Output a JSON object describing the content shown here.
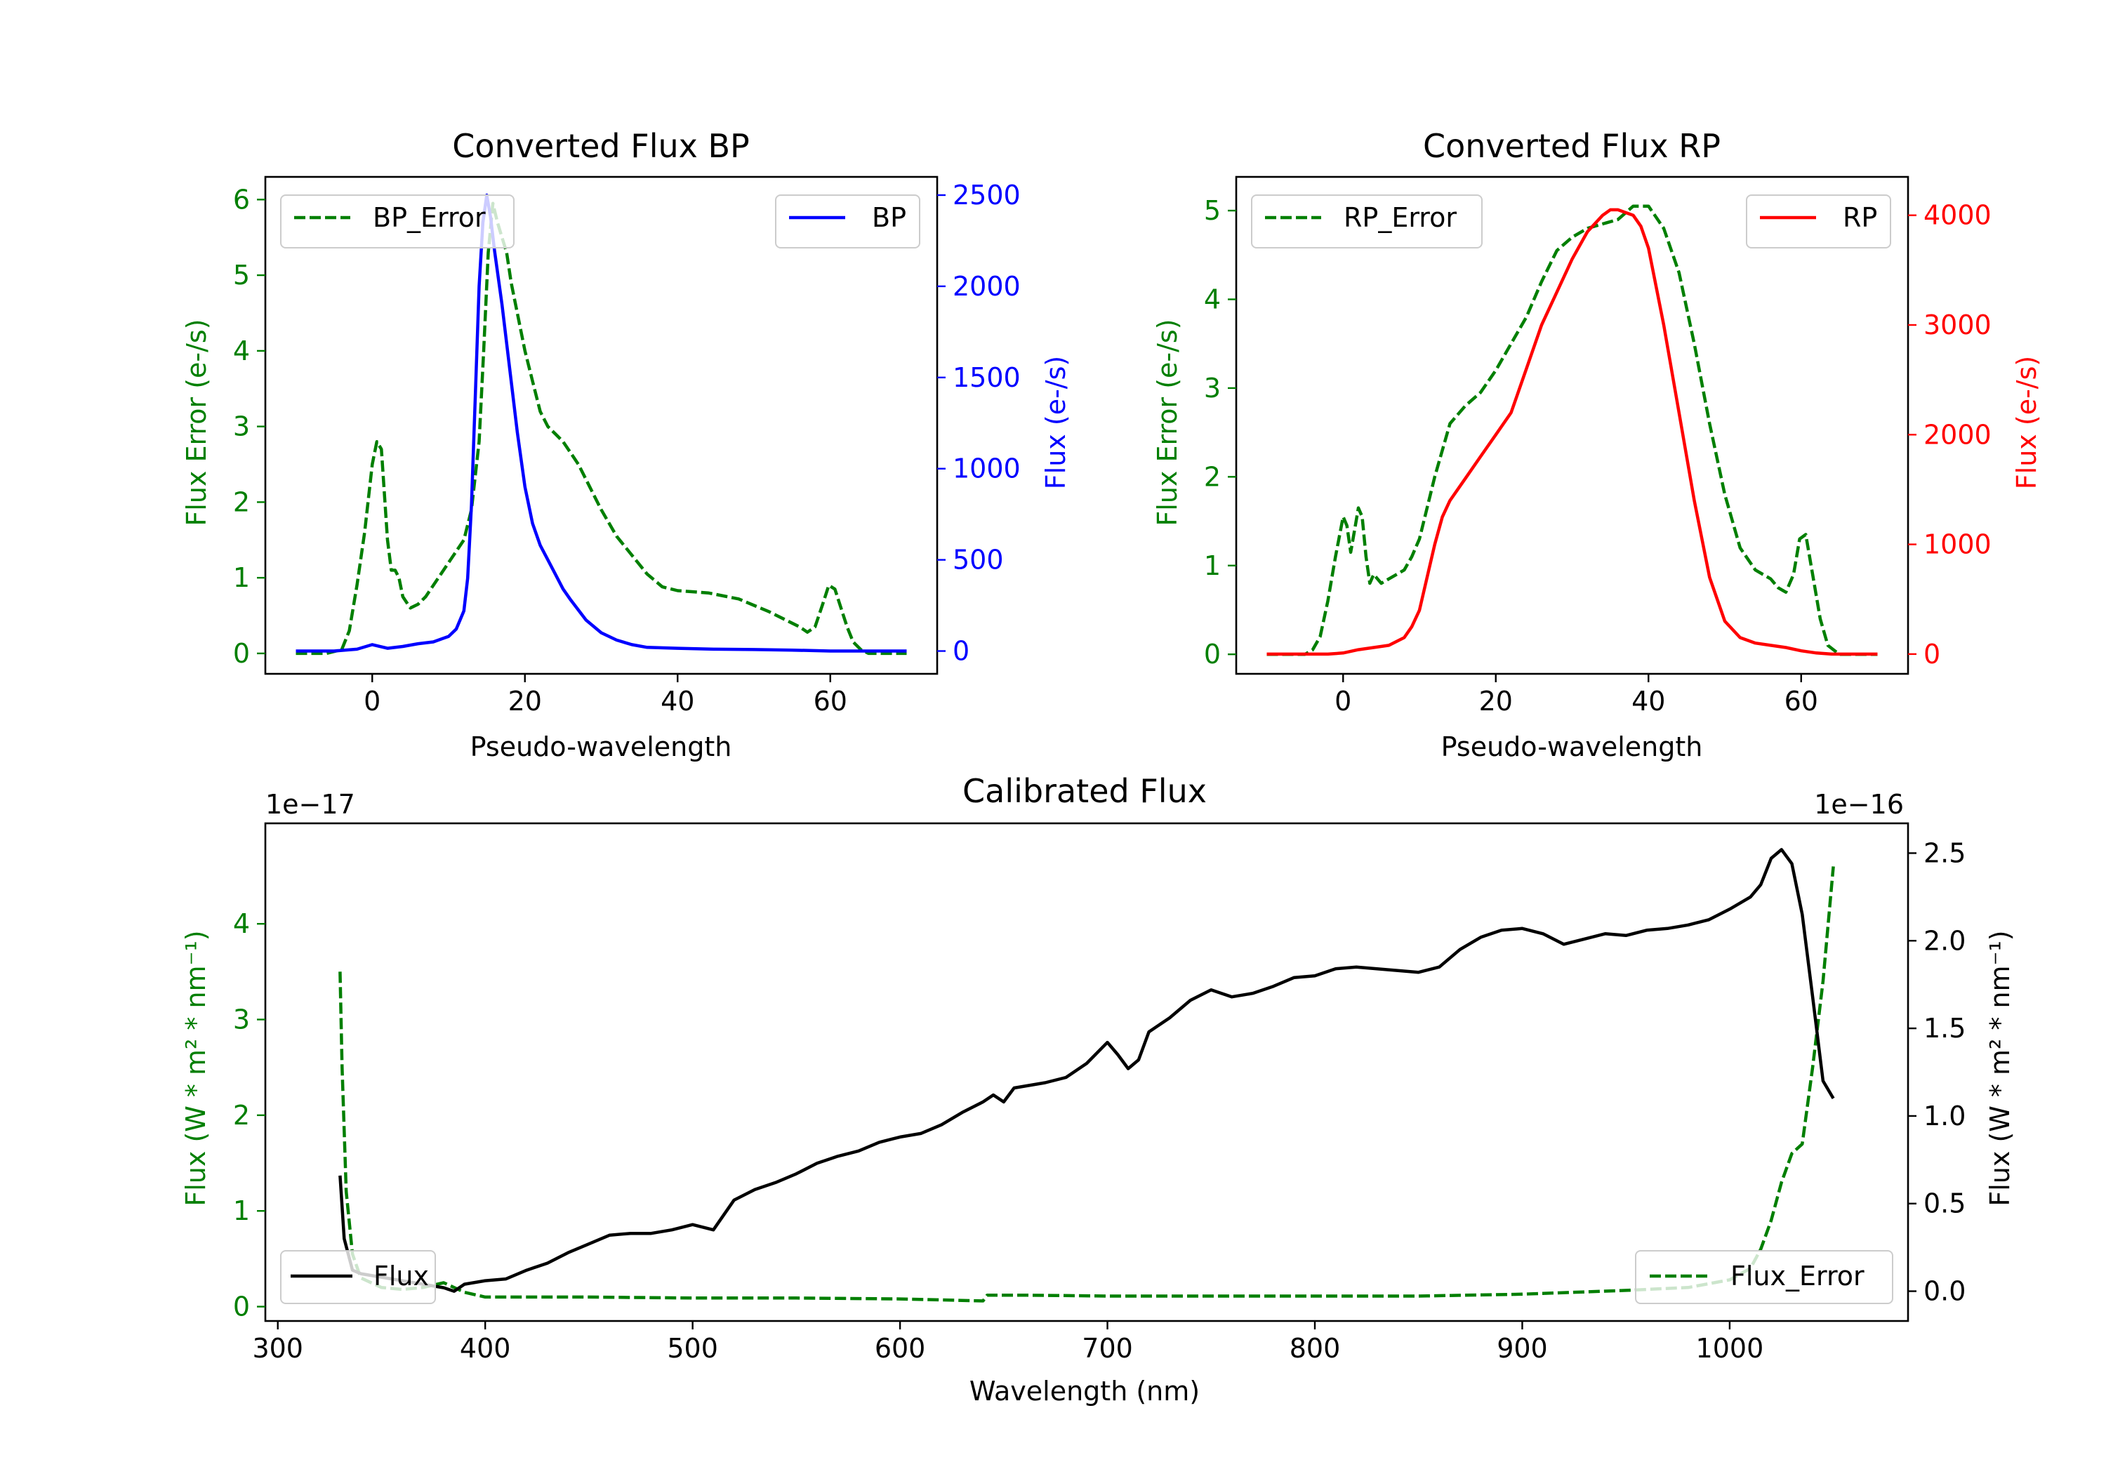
{
  "colors": {
    "error": "#007f00",
    "bp": "#0000ff",
    "rp": "#ff0000",
    "flux": "#000000",
    "axis": "#000000",
    "legend_border": "#cccccc"
  },
  "chart_data": [
    {
      "id": "bp",
      "type": "line",
      "title": "Converted Flux BP",
      "xlabel": "Pseudo-wavelength",
      "ylabel_left": "Flux Error (e-/s)",
      "ylabel_right": "Flux (e-/s)",
      "xlim": [
        -14,
        74
      ],
      "ylim_left": [
        -0.27,
        6.3
      ],
      "ylim_right": [
        -125,
        2600
      ],
      "xticks": [
        0,
        20,
        40,
        60
      ],
      "yticks_left": [
        0,
        1,
        2,
        3,
        4,
        5,
        6
      ],
      "yticks_right": [
        0,
        500,
        1000,
        1500,
        2000,
        2500
      ],
      "series": [
        {
          "name": "BP_Error",
          "axis": "left",
          "style": "dashed",
          "color": "#007f00",
          "legend": "top-left",
          "x": [
            -10,
            -6,
            -4,
            -3,
            -2,
            -1,
            0,
            0.6,
            1.2,
            2,
            2.5,
            3,
            3.5,
            4,
            5,
            6,
            7,
            8,
            10,
            12,
            13,
            14,
            14.6,
            15.2,
            15.8,
            16.4,
            17,
            17.6,
            18.2,
            19,
            20,
            21,
            22,
            23,
            24,
            25,
            26,
            27,
            28,
            29,
            30,
            32,
            34,
            36,
            38,
            40,
            44,
            48,
            52,
            55,
            56,
            57,
            58,
            59,
            59.8,
            60.6,
            61.4,
            62.2,
            63,
            64,
            65,
            70
          ],
          "y": [
            0,
            0,
            0.05,
            0.3,
            0.9,
            1.6,
            2.5,
            2.8,
            2.7,
            1.5,
            1.1,
            1.1,
            1.0,
            0.75,
            0.6,
            0.65,
            0.75,
            0.9,
            1.2,
            1.5,
            1.9,
            2.8,
            4.0,
            5.3,
            5.95,
            5.7,
            5.5,
            5.3,
            4.9,
            4.5,
            4.0,
            3.6,
            3.2,
            3.0,
            2.9,
            2.8,
            2.65,
            2.5,
            2.3,
            2.1,
            1.9,
            1.55,
            1.3,
            1.05,
            0.88,
            0.83,
            0.8,
            0.72,
            0.55,
            0.4,
            0.35,
            0.28,
            0.35,
            0.65,
            0.9,
            0.85,
            0.6,
            0.35,
            0.15,
            0.05,
            0,
            0
          ]
        },
        {
          "name": "BP",
          "axis": "right",
          "style": "solid",
          "color": "#0000ff",
          "legend": "top-right",
          "x": [
            -10,
            -5,
            -2,
            0,
            2,
            4,
            6,
            8,
            10,
            11,
            12,
            12.5,
            13,
            13.5,
            14,
            14.5,
            15,
            15.5,
            16,
            16.5,
            17,
            18,
            19,
            20,
            21,
            22,
            23,
            24,
            25,
            26,
            28,
            30,
            32,
            34,
            36,
            40,
            45,
            50,
            55,
            60,
            65,
            70
          ],
          "y": [
            0,
            0,
            10,
            35,
            15,
            25,
            40,
            50,
            80,
            120,
            220,
            400,
            800,
            1400,
            2000,
            2350,
            2500,
            2380,
            2200,
            2050,
            1900,
            1550,
            1200,
            900,
            700,
            580,
            500,
            420,
            340,
            280,
            170,
            100,
            60,
            35,
            20,
            15,
            10,
            8,
            5,
            0,
            0,
            0
          ]
        }
      ]
    },
    {
      "id": "rp",
      "type": "line",
      "title": "Converted Flux RP",
      "xlabel": "Pseudo-wavelength",
      "ylabel_left": "Flux Error (e-/s)",
      "ylabel_right": "Flux (e-/s)",
      "xlim": [
        -14,
        74
      ],
      "ylim_left": [
        -0.22,
        5.38
      ],
      "ylim_right": [
        -180,
        4350
      ],
      "xticks": [
        0,
        20,
        40,
        60
      ],
      "yticks_left": [
        0,
        1,
        2,
        3,
        4,
        5
      ],
      "yticks_right": [
        0,
        1000,
        2000,
        3000,
        4000
      ],
      "series": [
        {
          "name": "RP_Error",
          "axis": "left",
          "style": "dashed",
          "color": "#007f00",
          "legend": "top-left",
          "x": [
            -10,
            -5,
            -4,
            -3,
            -2,
            -1,
            0,
            0.5,
            1,
            1.5,
            2,
            2.5,
            3,
            3.5,
            4,
            5,
            6,
            7,
            8,
            9,
            10,
            12,
            14,
            16,
            18,
            20,
            22,
            24,
            26,
            28,
            30,
            32,
            34,
            36,
            38,
            40,
            42,
            44,
            46,
            48,
            50,
            52,
            54,
            56,
            57,
            58,
            59,
            59.8,
            60.6,
            61.5,
            62.5,
            63.5,
            65,
            70
          ],
          "y": [
            0,
            0,
            0.05,
            0.2,
            0.6,
            1.1,
            1.55,
            1.45,
            1.15,
            1.4,
            1.65,
            1.55,
            1.1,
            0.8,
            0.9,
            0.8,
            0.85,
            0.9,
            0.95,
            1.1,
            1.3,
            2.0,
            2.6,
            2.8,
            2.95,
            3.2,
            3.5,
            3.8,
            4.2,
            4.55,
            4.7,
            4.8,
            4.85,
            4.9,
            5.05,
            5.05,
            4.8,
            4.3,
            3.5,
            2.6,
            1.8,
            1.2,
            0.95,
            0.85,
            0.75,
            0.7,
            0.9,
            1.3,
            1.35,
            0.9,
            0.4,
            0.1,
            0,
            0
          ]
        },
        {
          "name": "RP",
          "axis": "right",
          "style": "solid",
          "color": "#ff0000",
          "legend": "top-right",
          "x": [
            -10,
            -2,
            0,
            2,
            4,
            6,
            8,
            9,
            10,
            11,
            12,
            13,
            14,
            16,
            18,
            20,
            22,
            23,
            24,
            26,
            28,
            30,
            32,
            34,
            35,
            36,
            38,
            39,
            40,
            42,
            44,
            46,
            48,
            50,
            52,
            54,
            56,
            58,
            60,
            62,
            64,
            66,
            70
          ],
          "y": [
            0,
            0,
            10,
            40,
            60,
            80,
            150,
            250,
            400,
            700,
            1000,
            1250,
            1400,
            1600,
            1800,
            2000,
            2200,
            2400,
            2600,
            3000,
            3300,
            3600,
            3850,
            4000,
            4050,
            4050,
            4000,
            3900,
            3700,
            3000,
            2200,
            1400,
            700,
            300,
            150,
            100,
            80,
            60,
            30,
            10,
            0,
            0,
            0
          ]
        }
      ]
    },
    {
      "id": "calibrated",
      "type": "line",
      "title": "Calibrated Flux",
      "xlabel": "Wavelength (nm)",
      "ylabel_left": "Flux (W * m² * nm⁻¹)",
      "ylabel_right": "Flux (W * m² * nm⁻¹)",
      "offset_left": "1e−17",
      "offset_right": "1e−16",
      "xlim": [
        294,
        1086
      ],
      "ylim_left": [
        -0.15,
        5.05
      ],
      "ylim_right": [
        -0.17,
        2.67
      ],
      "xticks": [
        300,
        400,
        500,
        600,
        700,
        800,
        900,
        1000
      ],
      "yticks_left": [
        0,
        1,
        2,
        3,
        4
      ],
      "yticks_right": [
        0.0,
        0.5,
        1.0,
        1.5,
        2.0,
        2.5
      ],
      "series": [
        {
          "name": "Flux_Error",
          "axis": "left",
          "style": "dashed",
          "color": "#007f00",
          "legend": "bottom-right",
          "x": [
            330,
            331,
            333,
            336,
            340,
            350,
            360,
            370,
            380,
            390,
            400,
            420,
            450,
            500,
            550,
            600,
            640,
            642,
            660,
            700,
            750,
            800,
            850,
            900,
            950,
            980,
            1000,
            1010,
            1015,
            1020,
            1025,
            1030,
            1035,
            1040,
            1045,
            1050
          ],
          "y": [
            3.5,
            2.5,
            1.2,
            0.55,
            0.3,
            0.2,
            0.18,
            0.2,
            0.25,
            0.15,
            0.1,
            0.1,
            0.1,
            0.09,
            0.09,
            0.08,
            0.06,
            0.12,
            0.12,
            0.11,
            0.11,
            0.11,
            0.11,
            0.13,
            0.17,
            0.2,
            0.28,
            0.4,
            0.6,
            0.9,
            1.3,
            1.6,
            1.7,
            2.5,
            3.4,
            4.6
          ]
        },
        {
          "name": "Flux",
          "axis": "right",
          "style": "solid",
          "color": "#000000",
          "legend": "bottom-left",
          "x": [
            330,
            332,
            336,
            340,
            350,
            360,
            370,
            380,
            385,
            390,
            400,
            410,
            420,
            430,
            440,
            450,
            460,
            470,
            480,
            490,
            500,
            510,
            520,
            530,
            540,
            550,
            560,
            570,
            580,
            590,
            600,
            610,
            620,
            630,
            640,
            645,
            650,
            655,
            660,
            670,
            680,
            690,
            700,
            705,
            710,
            715,
            720,
            730,
            740,
            750,
            755,
            760,
            770,
            780,
            790,
            800,
            810,
            820,
            830,
            840,
            850,
            860,
            870,
            880,
            890,
            900,
            910,
            920,
            930,
            940,
            950,
            960,
            970,
            980,
            990,
            1000,
            1010,
            1015,
            1020,
            1025,
            1030,
            1035,
            1040,
            1045,
            1050
          ],
          "y": [
            0.66,
            0.3,
            0.12,
            0.1,
            0.08,
            0.06,
            0.04,
            0.02,
            0.0,
            0.04,
            0.06,
            0.07,
            0.12,
            0.16,
            0.22,
            0.27,
            0.32,
            0.33,
            0.33,
            0.35,
            0.38,
            0.35,
            0.52,
            0.58,
            0.62,
            0.67,
            0.73,
            0.77,
            0.8,
            0.85,
            0.88,
            0.9,
            0.95,
            1.02,
            1.08,
            1.12,
            1.08,
            1.16,
            1.17,
            1.19,
            1.22,
            1.3,
            1.42,
            1.35,
            1.27,
            1.32,
            1.48,
            1.56,
            1.66,
            1.72,
            1.7,
            1.68,
            1.7,
            1.74,
            1.79,
            1.8,
            1.84,
            1.85,
            1.84,
            1.83,
            1.82,
            1.85,
            1.95,
            2.02,
            2.06,
            2.07,
            2.04,
            1.98,
            2.01,
            2.04,
            2.03,
            2.06,
            2.07,
            2.09,
            2.12,
            2.18,
            2.25,
            2.32,
            2.47,
            2.52,
            2.44,
            2.15,
            1.68,
            1.2,
            1.1
          ]
        }
      ]
    }
  ]
}
